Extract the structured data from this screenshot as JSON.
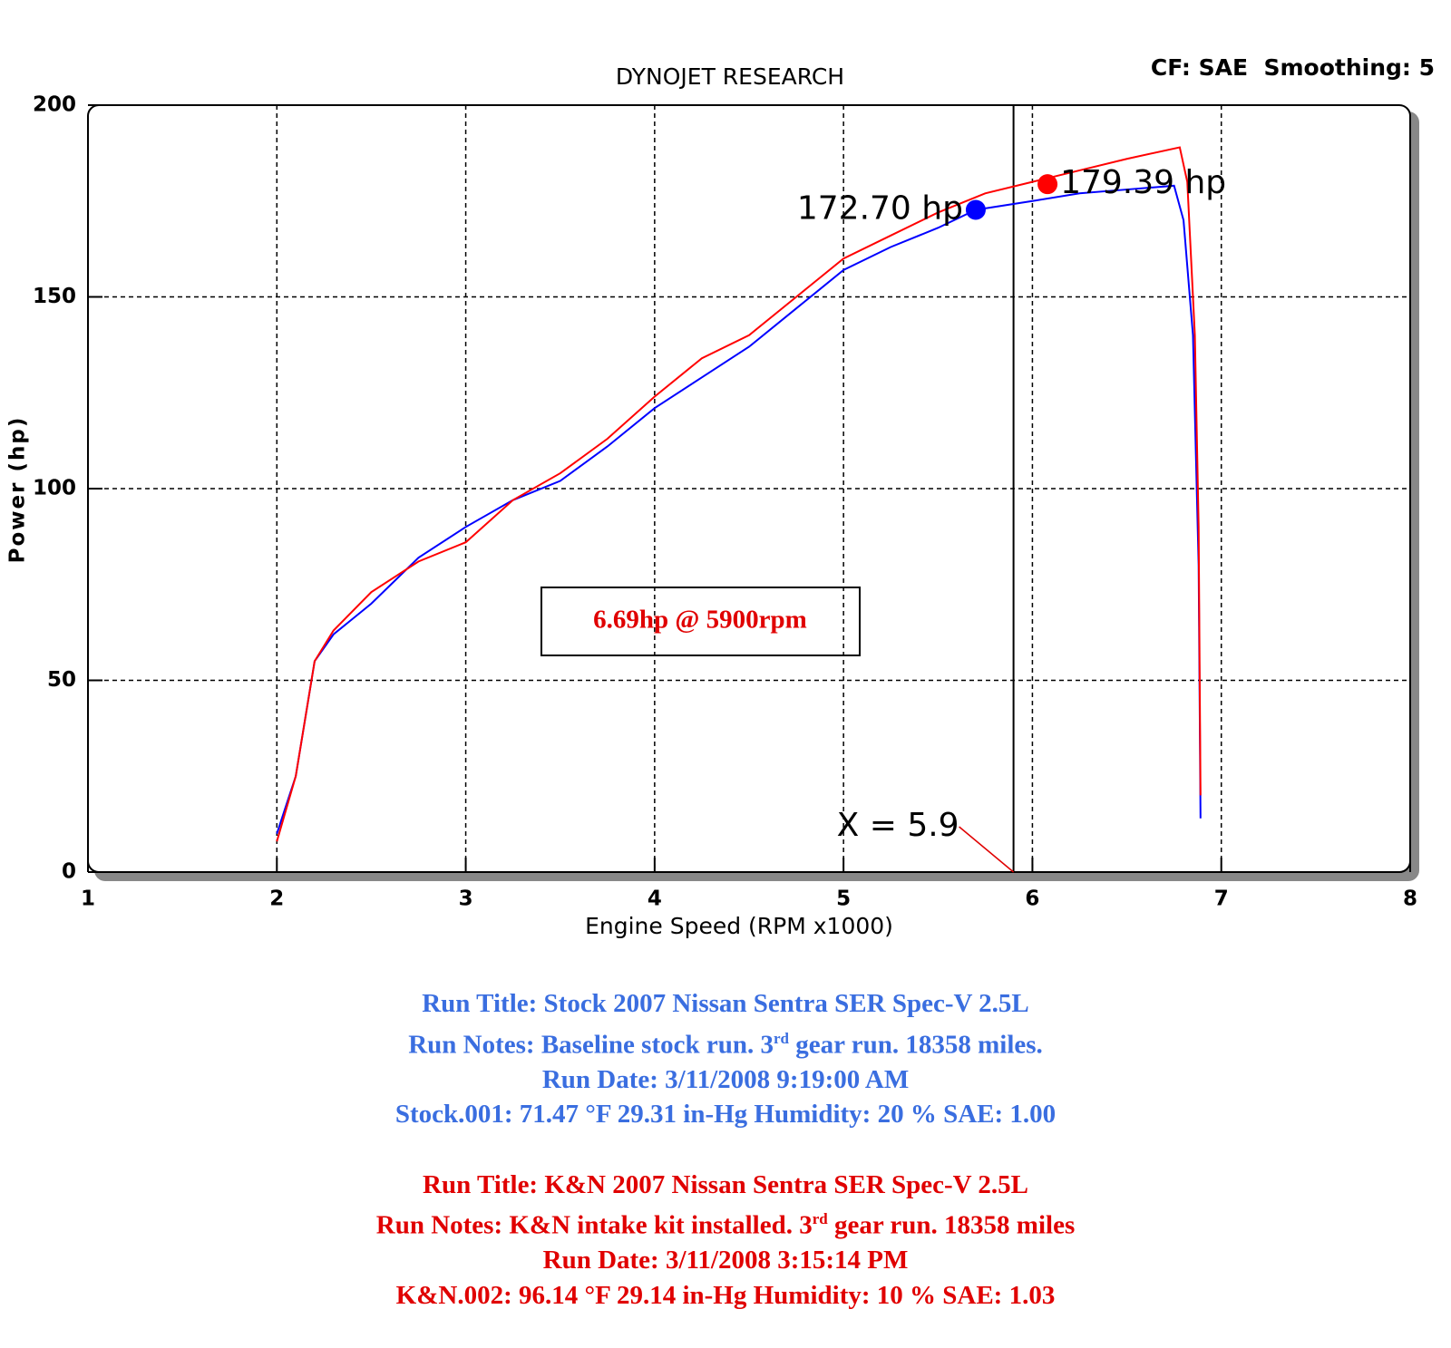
{
  "chart_data": {
    "type": "line",
    "title": "DYNOJET RESEARCH",
    "subtitle": "CF: SAE  Smoothing: 5",
    "xlabel": "Engine Speed (RPM x1000)",
    "ylabel": "Power (hp)",
    "xlim": [
      1,
      8
    ],
    "xticks": [
      1,
      2,
      3,
      4,
      5,
      6,
      7,
      8
    ],
    "ylim": [
      0,
      200
    ],
    "yticks": [
      0,
      50,
      100,
      150,
      200
    ],
    "grid": true,
    "series": [
      {
        "color": "#0000ff",
        "x": [
          2.0,
          2.1,
          2.15,
          2.2,
          2.3,
          2.5,
          2.75,
          3.0,
          3.25,
          3.5,
          3.75,
          4.0,
          4.25,
          4.5,
          4.75,
          5.0,
          5.25,
          5.5,
          5.7,
          6.0,
          6.25,
          6.5,
          6.75,
          6.8,
          6.85,
          6.88,
          6.89
        ],
        "values": [
          10,
          25,
          40,
          55,
          62,
          70,
          82,
          90,
          97,
          102,
          111,
          121,
          129,
          137,
          147,
          157,
          163,
          168,
          172.7,
          175,
          177,
          178,
          179,
          170,
          140,
          80,
          14
        ]
      },
      {
        "color": "#ff0000",
        "x": [
          2.0,
          2.1,
          2.2,
          2.3,
          2.5,
          2.75,
          3.0,
          3.25,
          3.5,
          3.75,
          4.0,
          4.25,
          4.5,
          4.75,
          5.0,
          5.25,
          5.5,
          5.75,
          6.0,
          6.25,
          6.5,
          6.78,
          6.82,
          6.86,
          6.88,
          6.89
        ],
        "values": [
          8,
          25,
          55,
          63,
          73,
          81,
          86,
          97,
          104,
          113,
          124,
          134,
          140,
          150,
          160,
          166,
          172,
          177,
          180,
          183,
          186,
          189,
          180,
          140,
          90,
          20
        ]
      }
    ],
    "markers": [
      {
        "x": 5.7,
        "y": 172.7,
        "label": "172.70 hp",
        "color": "#0000ff"
      },
      {
        "x": 6.08,
        "y": 179.39,
        "label": "179.39 hp",
        "color": "#ff0000"
      }
    ],
    "cursor": {
      "x": 5.9,
      "label": "X = 5.9"
    },
    "annotation": "6.69hp @ 5900rpm"
  },
  "run_info": [
    {
      "color": "#3a6ee0",
      "title": "Run Title: Stock 2007 Nissan Sentra SER Spec-V 2.5L",
      "notes": [
        "Run Notes: Baseline stock run. 3",
        "rd",
        " gear run. 18358 miles."
      ],
      "date": "Run Date: 3/11/2008 9:19:00 AM",
      "conditions": "Stock.001: 71.47 °F 29.31 in-Hg Humidity: 20 % SAE: 1.00"
    },
    {
      "color": "#e00000",
      "title": "Run Title: K&N 2007 Nissan Sentra SER Spec-V 2.5L",
      "notes": [
        "Run Notes: K&N intake kit installed. 3",
        "rd",
        " gear run. 18358 miles"
      ],
      "date": "Run Date: 3/11/2008 3:15:14 PM",
      "conditions": "K&N.002: 96.14 °F 29.14 in-Hg Humidity: 10 % SAE: 1.03"
    }
  ]
}
